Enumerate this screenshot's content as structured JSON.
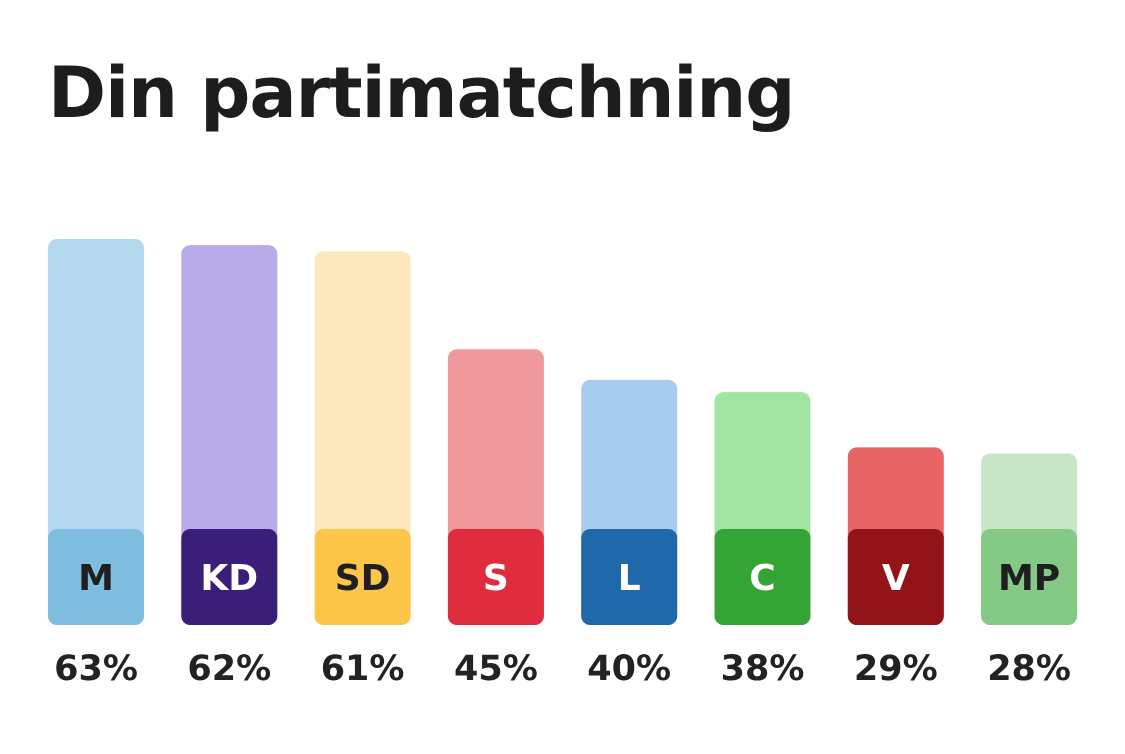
{
  "title": "Din partimatchning",
  "chart_data": {
    "type": "bar",
    "title": "Din partimatchning",
    "unit": "%",
    "ylim": [
      0,
      63
    ],
    "grid": false,
    "categories": [
      "M",
      "KD",
      "SD",
      "S",
      "L",
      "C",
      "V",
      "MP"
    ],
    "values": [
      63,
      62,
      61,
      45,
      40,
      38,
      29,
      28
    ],
    "value_labels": [
      "63%",
      "62%",
      "61%",
      "45%",
      "40%",
      "38%",
      "29%",
      "28%"
    ],
    "bars": [
      {
        "party": "M",
        "value": 63,
        "label": "63%",
        "bar_color": "#b4d9ee",
        "badge_color": "#7fbde0",
        "badge_text_color": "#1f1f1f"
      },
      {
        "party": "KD",
        "value": 62,
        "label": "62%",
        "bar_color": "#b9abe8",
        "badge_color": "#3a1e78",
        "badge_text_color": "#ffffff"
      },
      {
        "party": "SD",
        "value": 61,
        "label": "61%",
        "bar_color": "#fde8bd",
        "badge_color": "#fec649",
        "badge_text_color": "#1f1f1f"
      },
      {
        "party": "S",
        "value": 45,
        "label": "45%",
        "bar_color": "#ef999d",
        "badge_color": "#e02d3d",
        "badge_text_color": "#ffffff"
      },
      {
        "party": "L",
        "value": 40,
        "label": "40%",
        "bar_color": "#a8ccee",
        "badge_color": "#1f69aa",
        "badge_text_color": "#ffffff"
      },
      {
        "party": "C",
        "value": 38,
        "label": "38%",
        "bar_color": "#a2e5a3",
        "badge_color": "#34a535",
        "badge_text_color": "#ffffff"
      },
      {
        "party": "V",
        "value": 29,
        "label": "29%",
        "bar_color": "#e96565",
        "badge_color": "#931418",
        "badge_text_color": "#ffffff"
      },
      {
        "party": "MP",
        "value": 28,
        "label": "28%",
        "bar_color": "#c7e6c8",
        "badge_color": "#84c985",
        "badge_text_color": "#1f1f1f"
      }
    ]
  }
}
